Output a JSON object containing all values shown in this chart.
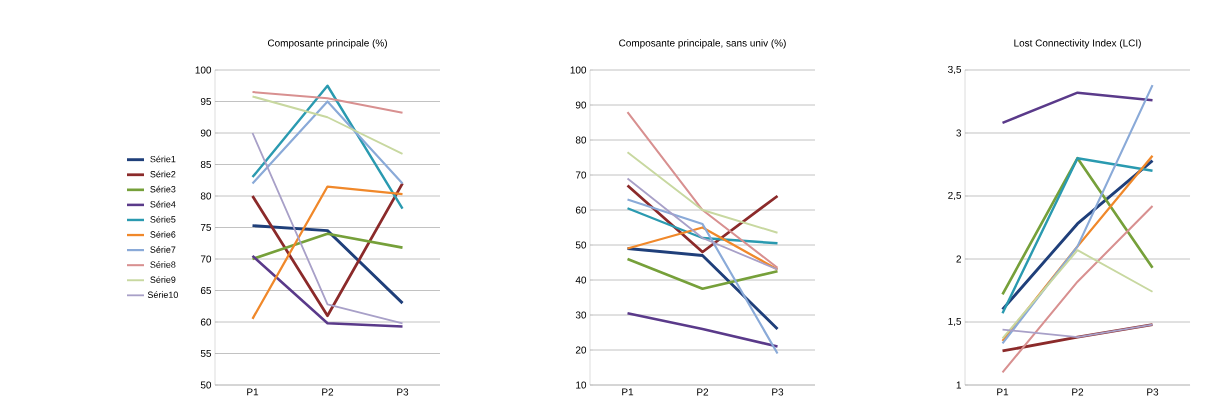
{
  "chart_data": [
    {
      "type": "line",
      "title": "Composante principale (%)",
      "categories": [
        "P1",
        "P2",
        "P3"
      ],
      "ylim": [
        50,
        100
      ],
      "yticks": [
        50,
        55,
        60,
        65,
        70,
        75,
        80,
        85,
        90,
        95,
        100
      ],
      "grid": "y",
      "legend": "left",
      "series": [
        {
          "name": "Série1",
          "color": "#1f3f7a",
          "values": [
            75.3,
            74.5,
            63
          ]
        },
        {
          "name": "Série2",
          "color": "#8b2a2a",
          "values": [
            80,
            61,
            82
          ]
        },
        {
          "name": "Série3",
          "color": "#76a03a",
          "values": [
            70,
            74,
            71.8
          ]
        },
        {
          "name": "Série4",
          "color": "#5a3a8a",
          "values": [
            70.5,
            59.8,
            59.3
          ]
        },
        {
          "name": "Série5",
          "color": "#2a9ab0",
          "values": [
            83,
            97.5,
            78
          ]
        },
        {
          "name": "Série6",
          "color": "#f0882a",
          "values": [
            60.5,
            81.5,
            80.3
          ]
        },
        {
          "name": "Série7",
          "color": "#8aaad8",
          "values": [
            82,
            95,
            82
          ]
        },
        {
          "name": "Série8",
          "color": "#d89090",
          "values": [
            96.5,
            95.5,
            93.2
          ]
        },
        {
          "name": "Série9",
          "color": "#c8d8a0",
          "values": [
            95.8,
            92.5,
            86.7
          ]
        },
        {
          "name": "Série10",
          "color": "#a8a0c8",
          "values": [
            90,
            62.8,
            59.8
          ]
        }
      ]
    },
    {
      "type": "line",
      "title": "Composante principale, sans univ (%)",
      "categories": [
        "P1",
        "P2",
        "P3"
      ],
      "ylim": [
        10,
        100
      ],
      "yticks": [
        10,
        20,
        30,
        40,
        50,
        60,
        70,
        80,
        90,
        100
      ],
      "grid": "y",
      "series": [
        {
          "color": "#1f3f7a",
          "values": [
            49,
            47,
            26
          ]
        },
        {
          "color": "#8b2a2a",
          "values": [
            67,
            48,
            64
          ]
        },
        {
          "color": "#76a03a",
          "values": [
            46,
            37.5,
            42.5
          ]
        },
        {
          "color": "#5a3a8a",
          "values": [
            30.5,
            26,
            21
          ]
        },
        {
          "color": "#2a9ab0",
          "values": [
            60.5,
            52,
            50.5
          ]
        },
        {
          "color": "#f0882a",
          "values": [
            49,
            55,
            43
          ]
        },
        {
          "color": "#8aaad8",
          "values": [
            63,
            56,
            19
          ]
        },
        {
          "color": "#d89090",
          "values": [
            88,
            60,
            43.5
          ]
        },
        {
          "color": "#c8d8a0",
          "values": [
            76.5,
            60,
            53.5
          ]
        },
        {
          "color": "#a8a0c8",
          "values": [
            69,
            52,
            43
          ]
        }
      ]
    },
    {
      "type": "line",
      "title": "Lost Connectivity Index (LCI)",
      "categories": [
        "P1",
        "P2",
        "P3"
      ],
      "ylim": [
        1,
        3.5
      ],
      "yticks": [
        1,
        {
          "value": 1.5,
          "label": "1,5"
        },
        2,
        {
          "value": 2.5,
          "label": "2,5"
        },
        3,
        {
          "value": 3.5,
          "label": "3,5"
        }
      ],
      "grid": "y",
      "series": [
        {
          "color": "#1f3f7a",
          "values": [
            1.6,
            2.28,
            2.78
          ]
        },
        {
          "color": "#8b2a2a",
          "values": [
            1.27,
            1.38,
            1.48
          ]
        },
        {
          "color": "#76a03a",
          "values": [
            1.72,
            2.8,
            1.93
          ]
        },
        {
          "color": "#5a3a8a",
          "values": [
            3.08,
            3.32,
            3.26
          ]
        },
        {
          "color": "#2a9ab0",
          "values": [
            1.57,
            2.8,
            2.7
          ]
        },
        {
          "color": "#f0882a",
          "values": [
            1.35,
            2.1,
            2.82
          ]
        },
        {
          "color": "#8aaad8",
          "values": [
            1.33,
            2.1,
            3.38
          ]
        },
        {
          "color": "#d89090",
          "values": [
            1.1,
            1.82,
            2.42
          ]
        },
        {
          "color": "#c8d8a0",
          "values": [
            1.37,
            2.07,
            1.74
          ]
        },
        {
          "color": "#a8a0c8",
          "values": [
            1.44,
            1.38,
            1.48
          ]
        }
      ]
    }
  ]
}
